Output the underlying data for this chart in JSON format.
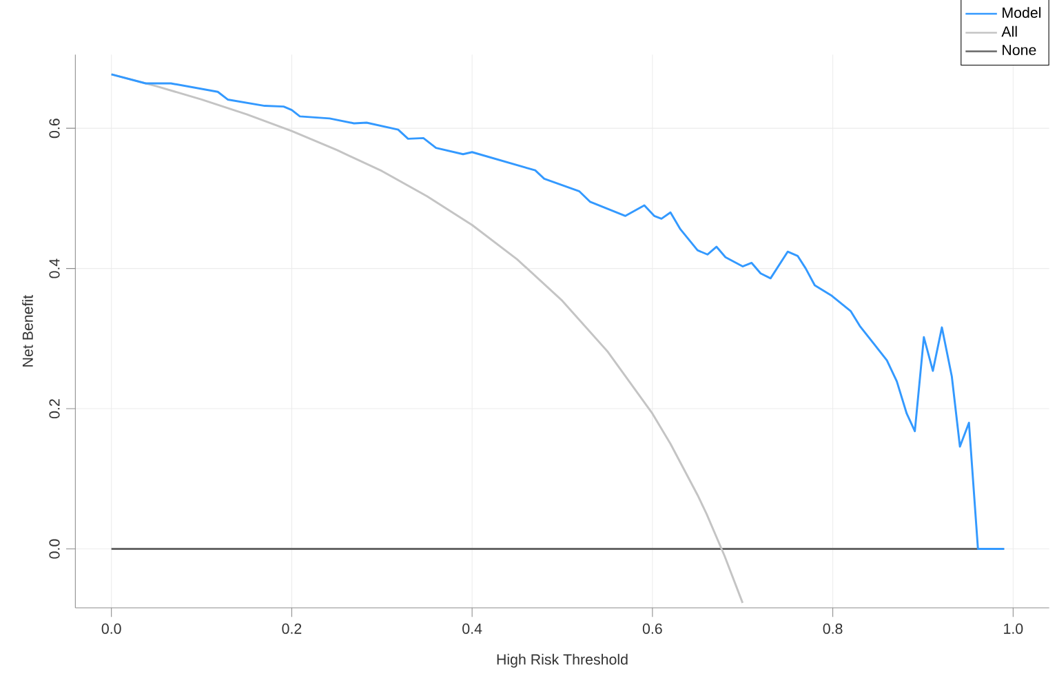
{
  "chart_data": {
    "type": "line",
    "xlabel": "High Risk Threshold",
    "ylabel": "Net Benefit",
    "xlim": [
      -0.04,
      1.04
    ],
    "ylim": [
      -0.084,
      0.705
    ],
    "xticks": [
      {
        "value": 0,
        "label": "0.0"
      },
      {
        "value": 0.2,
        "label": "0.2"
      },
      {
        "value": 0.4,
        "label": "0.4"
      },
      {
        "value": 0.6,
        "label": "0.6"
      },
      {
        "value": 0.8,
        "label": "0.8"
      },
      {
        "value": 1,
        "label": "1.0"
      }
    ],
    "yticks": [
      {
        "value": 0,
        "label": "0.0"
      },
      {
        "value": 0.2,
        "label": "0.2"
      },
      {
        "value": 0.4,
        "label": "0.4"
      },
      {
        "value": 0.6,
        "label": "0.6"
      }
    ],
    "grid": true,
    "legend": "top right",
    "marker": "none",
    "line_style": "solid",
    "series": [
      {
        "name": "Model",
        "color": "#3399ff",
        "x": [
          0,
          0.038,
          0.066,
          0.118,
          0.129,
          0.17,
          0.191,
          0.2,
          0.209,
          0.242,
          0.269,
          0.283,
          0.318,
          0.329,
          0.346,
          0.36,
          0.39,
          0.4,
          0.47,
          0.48,
          0.519,
          0.531,
          0.57,
          0.591,
          0.602,
          0.61,
          0.62,
          0.631,
          0.65,
          0.661,
          0.671,
          0.681,
          0.7,
          0.71,
          0.72,
          0.731,
          0.75,
          0.761,
          0.77,
          0.78,
          0.799,
          0.82,
          0.83,
          0.86,
          0.871,
          0.882,
          0.891,
          0.901,
          0.911,
          0.921,
          0.932,
          0.941,
          0.951,
          0.961,
          0.99
        ],
        "values": [
          0.677,
          0.664,
          0.664,
          0.652,
          0.641,
          0.632,
          0.631,
          0.626,
          0.617,
          0.614,
          0.607,
          0.608,
          0.598,
          0.585,
          0.586,
          0.572,
          0.563,
          0.566,
          0.54,
          0.528,
          0.51,
          0.495,
          0.475,
          0.49,
          0.475,
          0.471,
          0.48,
          0.456,
          0.426,
          0.42,
          0.431,
          0.416,
          0.403,
          0.408,
          0.393,
          0.386,
          0.424,
          0.418,
          0.4,
          0.376,
          0.361,
          0.339,
          0.318,
          0.269,
          0.239,
          0.193,
          0.168,
          0.302,
          0.254,
          0.316,
          0.246,
          0.146,
          0.18,
          0,
          0
        ]
      },
      {
        "name": "All",
        "color": "#c4c4c4",
        "x": [
          0,
          0.05,
          0.1,
          0.15,
          0.2,
          0.25,
          0.3,
          0.35,
          0.4,
          0.45,
          0.5,
          0.55,
          0.6,
          0.62,
          0.65,
          0.66,
          0.68,
          0.7
        ],
        "values": [
          0.677,
          0.66,
          0.641,
          0.62,
          0.596,
          0.569,
          0.539,
          0.503,
          0.462,
          0.413,
          0.354,
          0.282,
          0.193,
          0.15,
          0.077,
          0.05,
          -0.01,
          -0.077
        ]
      },
      {
        "name": "None",
        "color": "#666666",
        "x": [
          0,
          0.99
        ],
        "values": [
          0,
          0
        ]
      }
    ]
  }
}
